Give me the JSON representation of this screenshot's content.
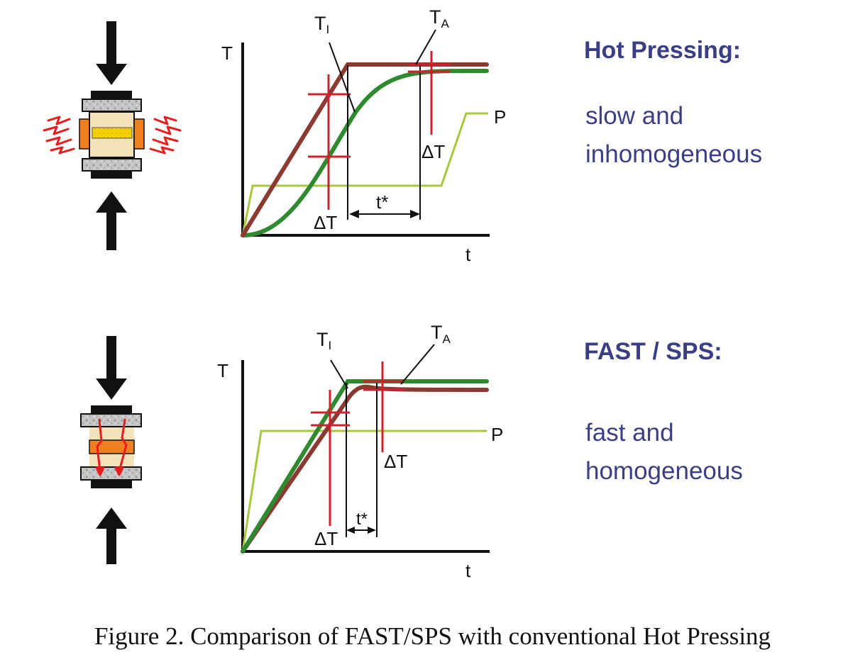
{
  "panels": {
    "hot_pressing": {
      "title": "Hot Pressing:",
      "description": [
        "slow and",
        "inhomogeneous"
      ],
      "labels": {
        "t_axis": "T",
        "time_axis": "t",
        "pressure": "P",
        "t_i_main": "T",
        "t_i_sub": "I",
        "t_a_main": "T",
        "t_a_sub": "A",
        "delta_t_left": "ΔT",
        "delta_t_right": "ΔT",
        "t_star": "t*"
      }
    },
    "fast_sps": {
      "title": "FAST / SPS:",
      "description": [
        "fast and",
        "homogeneous"
      ],
      "labels": {
        "t_axis": "T",
        "time_axis": "t",
        "pressure": "P",
        "t_i_main": "T",
        "t_i_sub": "I",
        "t_a_main": "T",
        "t_a_sub": "A",
        "delta_t_left": "ΔT",
        "delta_t_right": "ΔT",
        "t_star": "t*"
      }
    }
  },
  "caption": "Figure 2. Comparison of FAST/SPS with conventional Hot Pressing",
  "colors": {
    "heading_text": "#3a3f85",
    "outer_temperature_curve": "#8b3a32",
    "inner_temperature_curve": "#2f8a2f",
    "pressure_curve": "#a6c83a",
    "delta_t_marker": "#d0202e",
    "heat_arrows": "#e81c1c",
    "heater_blocks": "#f07f20",
    "sample": "#f5d400",
    "punches": "#b9b9b9",
    "press_arrows": "#111111"
  },
  "icons": [
    "press-arrow-down-icon",
    "press-arrow-up-icon",
    "heat-lightning-icon",
    "current-path-icon"
  ]
}
